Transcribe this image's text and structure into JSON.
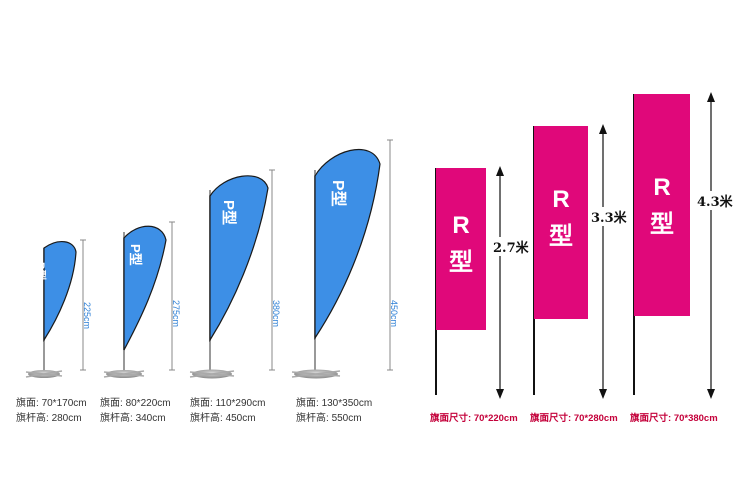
{
  "feather_flags": [
    {
      "label": "P型",
      "height": "225cm",
      "face_label": "旗面:",
      "face": "70*170cm",
      "pole_label": "旗杆高:",
      "pole": "280cm"
    },
    {
      "label": "P型",
      "height": "275cm",
      "face_label": "旗面:",
      "face": "80*220cm",
      "pole_label": "旗杆高:",
      "pole": "340cm"
    },
    {
      "label": "P型",
      "height": "380cm",
      "face_label": "旗面:",
      "face": "110*290cm",
      "pole_label": "旗杆高:",
      "pole": "450cm"
    },
    {
      "label": "P型",
      "height": "450cm",
      "face_label": "旗面:",
      "face": "130*350cm",
      "pole_label": "旗杆高:",
      "pole": "550cm"
    }
  ],
  "rect_flags": [
    {
      "letter": "R",
      "type": "型",
      "height": "2.7米",
      "size_label": "旗面尺寸:",
      "size": "70*220cm"
    },
    {
      "letter": "R",
      "type": "型",
      "height": "3.3米",
      "size_label": "旗面尺寸:",
      "size": "70*280cm"
    },
    {
      "letter": "R",
      "type": "型",
      "height": "4.3米",
      "size_label": "旗面尺寸:",
      "size": "70*380cm"
    }
  ],
  "colors": {
    "feather": "#3d8fe6",
    "feather_edge": "#1a1a1a",
    "rect": "#e0087a",
    "dim_blue": "#2c7fd6",
    "spec_red": "#c4003a"
  }
}
